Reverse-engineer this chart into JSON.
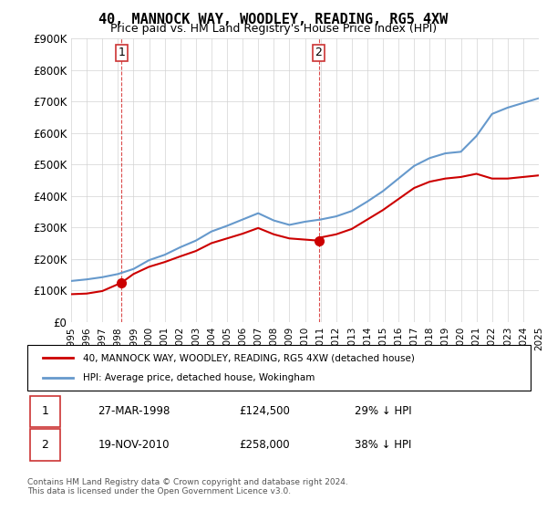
{
  "title": "40, MANNOCK WAY, WOODLEY, READING, RG5 4XW",
  "subtitle": "Price paid vs. HM Land Registry's House Price Index (HPI)",
  "ylabel_ticks": [
    "£0",
    "£100K",
    "£200K",
    "£300K",
    "£400K",
    "£500K",
    "£600K",
    "£700K",
    "£800K",
    "£900K"
  ],
  "ytick_vals": [
    0,
    100000,
    200000,
    300000,
    400000,
    500000,
    600000,
    700000,
    800000,
    900000
  ],
  "ylim": [
    0,
    900000
  ],
  "x_start_year": 1995,
  "x_end_year": 2025,
  "sale1": {
    "date": "27-MAR-1998",
    "price": 124500,
    "year": 1998.23,
    "label": "1"
  },
  "sale2": {
    "date": "19-NOV-2010",
    "price": 258000,
    "year": 2010.88,
    "label": "2"
  },
  "red_color": "#cc0000",
  "blue_color": "#6699cc",
  "legend_label1": "40, MANNOCK WAY, WOODLEY, READING, RG5 4XW (detached house)",
  "legend_label2": "HPI: Average price, detached house, Wokingham",
  "footnote": "Contains HM Land Registry data © Crown copyright and database right 2024.\nThis data is licensed under the Open Government Licence v3.0.",
  "table_row1": [
    "1",
    "27-MAR-1998",
    "£124,500",
    "29% ↓ HPI"
  ],
  "table_row2": [
    "2",
    "19-NOV-2010",
    "£258,000",
    "38% ↓ HPI"
  ],
  "hpi_years": [
    1995,
    1996,
    1997,
    1998,
    1999,
    2000,
    2001,
    2002,
    2003,
    2004,
    2005,
    2006,
    2007,
    2008,
    2009,
    2010,
    2011,
    2012,
    2013,
    2014,
    2015,
    2016,
    2017,
    2018,
    2019,
    2020,
    2021,
    2022,
    2023,
    2024,
    2025
  ],
  "hpi_values": [
    130000,
    135000,
    142000,
    152000,
    168000,
    196000,
    213000,
    237000,
    258000,
    287000,
    305000,
    325000,
    345000,
    322000,
    308000,
    318000,
    325000,
    335000,
    352000,
    382000,
    415000,
    455000,
    495000,
    520000,
    535000,
    540000,
    590000,
    660000,
    680000,
    695000,
    710000
  ],
  "red_years": [
    1995,
    1996,
    1997,
    1998.23,
    1999,
    2000,
    2001,
    2002,
    2003,
    2004,
    2005,
    2006,
    2007,
    2008,
    2009,
    2010.88,
    2011,
    2012,
    2013,
    2014,
    2015,
    2016,
    2017,
    2018,
    2019,
    2020,
    2021,
    2022,
    2023,
    2024,
    2025
  ],
  "red_values": [
    88000,
    90000,
    98000,
    124500,
    152000,
    175000,
    190000,
    208000,
    225000,
    250000,
    265000,
    280000,
    298000,
    278000,
    265000,
    258000,
    268000,
    278000,
    295000,
    325000,
    355000,
    390000,
    425000,
    445000,
    455000,
    460000,
    470000,
    455000,
    455000,
    460000,
    465000
  ]
}
